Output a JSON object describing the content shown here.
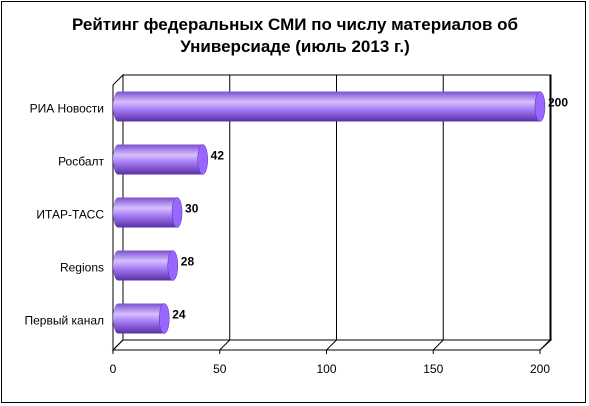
{
  "chart_data": {
    "type": "bar",
    "orientation": "horizontal",
    "title": "Рейтинг федеральных СМИ по числу материалов об Универсиаде (июль 2013 г.)",
    "categories": [
      "РИА Новости",
      "Росбалт",
      "ИТАР-ТАСС",
      "Regions",
      "Первый канал"
    ],
    "values": [
      200,
      42,
      30,
      28,
      24
    ],
    "color": "#9966ff",
    "xlim": [
      0,
      200
    ],
    "xticks": [
      0,
      50,
      100,
      150,
      200
    ],
    "grid": true
  }
}
